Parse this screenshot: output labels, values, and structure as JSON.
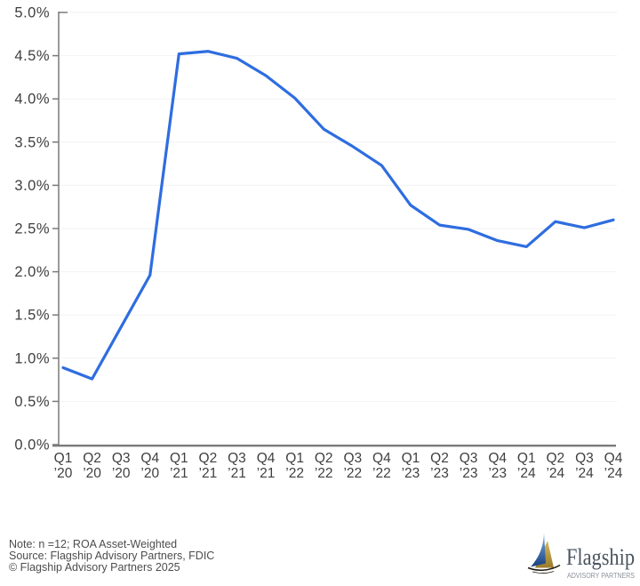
{
  "chart_data": {
    "type": "line",
    "categories": [
      {
        "q": "Q1",
        "yr": "’20"
      },
      {
        "q": "Q2",
        "yr": "’20"
      },
      {
        "q": "Q3",
        "yr": "’20"
      },
      {
        "q": "Q4",
        "yr": "’20"
      },
      {
        "q": "Q1",
        "yr": "’21"
      },
      {
        "q": "Q2",
        "yr": "’21"
      },
      {
        "q": "Q3",
        "yr": "’21"
      },
      {
        "q": "Q4",
        "yr": "’21"
      },
      {
        "q": "Q1",
        "yr": "’22"
      },
      {
        "q": "Q2",
        "yr": "’22"
      },
      {
        "q": "Q3",
        "yr": "’22"
      },
      {
        "q": "Q4",
        "yr": "’22"
      },
      {
        "q": "Q1",
        "yr": "’23"
      },
      {
        "q": "Q2",
        "yr": "’23"
      },
      {
        "q": "Q3",
        "yr": "’23"
      },
      {
        "q": "Q4",
        "yr": "’23"
      },
      {
        "q": "Q1",
        "yr": "’24"
      },
      {
        "q": "Q2",
        "yr": "’24"
      },
      {
        "q": "Q3",
        "yr": "’24"
      },
      {
        "q": "Q4",
        "yr": "’24"
      }
    ],
    "values": [
      0.89,
      0.76,
      1.36,
      1.96,
      4.52,
      4.55,
      4.47,
      4.27,
      4.01,
      3.65,
      3.45,
      3.23,
      2.77,
      2.54,
      2.49,
      2.36,
      2.29,
      2.58,
      2.51,
      2.6
    ],
    "y_ticks": [
      {
        "v": 0.0,
        "label": "0.0%"
      },
      {
        "v": 0.5,
        "label": "0.5%"
      },
      {
        "v": 1.0,
        "label": "1.0%"
      },
      {
        "v": 1.5,
        "label": "1.5%"
      },
      {
        "v": 2.0,
        "label": "2.0%"
      },
      {
        "v": 2.5,
        "label": "2.5%"
      },
      {
        "v": 3.0,
        "label": "3.0%"
      },
      {
        "v": 3.5,
        "label": "3.5%"
      },
      {
        "v": 4.0,
        "label": "4.0%"
      },
      {
        "v": 4.5,
        "label": "4.5%"
      },
      {
        "v": 5.0,
        "label": "5.0%"
      }
    ],
    "title": "",
    "xlabel": "",
    "ylabel": "",
    "ylim": [
      0,
      5
    ],
    "grid": true,
    "legend": "none",
    "line_color": "#2e6de0",
    "axis_color": "#7a7a7a",
    "grid_color": "#f2f2f2",
    "tick_label_color": "#3f3f3f"
  },
  "footer": {
    "note": "Note: n =12; ROA Asset-Weighted",
    "source": "Source: Flagship Advisory Partners, FDIC",
    "copyright": "© Flagship Advisory Partners 2025"
  },
  "logo": {
    "wordmark": "Flagship",
    "tagline": "ADVISORY PARTNERS",
    "sail_blue_top": "#7fb3e8",
    "sail_blue_bottom": "#17407e",
    "sail_gold_top": "#d8b95e",
    "sail_gold_bottom": "#9a7b2a",
    "hull_color": "#1f1a10",
    "wordmark_color": "#4a5560",
    "tagline_color": "#8b9199"
  }
}
